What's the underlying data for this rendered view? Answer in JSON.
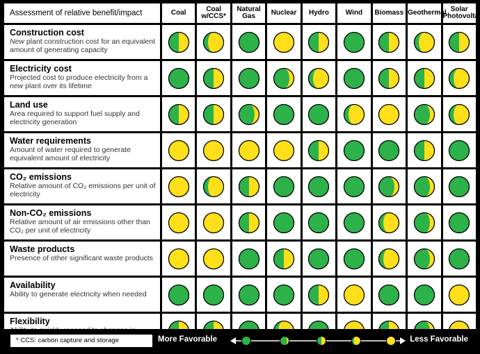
{
  "header": {
    "title": "Assessment of relative benefit/impact",
    "columns": [
      "Coal",
      "Coal w/CCS*",
      "Natural Gas",
      "Nuclear",
      "Hydro",
      "Wind",
      "Biomass",
      "Geothermal",
      "Solar Photovoltaic"
    ]
  },
  "rows": [
    {
      "title": "Construction cost",
      "desc_pre": "",
      "desc_em": "New",
      "desc_post": " plant construction cost for an equivalent amount of generating capacity",
      "ratings": [
        "half",
        "crescent",
        "green",
        "yellow",
        "half",
        "green",
        "half",
        "crescent",
        "half"
      ]
    },
    {
      "title": "Electricity cost",
      "desc_pre": "Projected cost to produce electricity from a ",
      "desc_em": "new",
      "desc_post": " plant over its lifetime",
      "ratings": [
        "green",
        "half",
        "green",
        "gibbous",
        "crescent",
        "green",
        "half",
        "half",
        "crescent"
      ]
    },
    {
      "title": "Land use",
      "desc_pre": "Area required to support fuel supply and electricity generation",
      "desc_em": "",
      "desc_post": "",
      "ratings": [
        "half",
        "half",
        "gibbous",
        "green",
        "green",
        "crescent",
        "yellow",
        "gibbous",
        "crescent"
      ]
    },
    {
      "title": "Water requirements",
      "desc_pre": "Amount of water required to generate equivalent amount of electricity",
      "desc_em": "",
      "desc_post": "",
      "ratings": [
        "yellow",
        "yellow",
        "yellow",
        "yellow",
        "half",
        "green",
        "green",
        "half",
        "green"
      ]
    },
    {
      "title": "CO₂ emissions",
      "desc_pre": "Relative amount of CO₂ emissions per unit of electricity",
      "desc_em": "",
      "desc_post": "",
      "ratings": [
        "yellow",
        "crescent",
        "half",
        "green",
        "green",
        "green",
        "gibbous",
        "gibbous",
        "green"
      ]
    },
    {
      "title": "Non-CO₂ emissions",
      "desc_pre": "Relative amount of air emissions other than CO₂ per unit of electricity",
      "desc_em": "",
      "desc_post": "",
      "ratings": [
        "yellow",
        "yellow",
        "half",
        "green",
        "green",
        "green",
        "crescent",
        "gibbous",
        "green"
      ]
    },
    {
      "title": "Waste products",
      "desc_pre": "Presence of other significant waste products",
      "desc_em": "",
      "desc_post": "",
      "ratings": [
        "yellow",
        "yellow",
        "green",
        "half",
        "green",
        "green",
        "crescent",
        "gibbous",
        "green"
      ]
    },
    {
      "title": "Availability",
      "desc_pre": "Ability to generate electricity when needed",
      "desc_em": "",
      "desc_post": "",
      "ratings": [
        "green",
        "green",
        "green",
        "green",
        "half",
        "yellow",
        "green",
        "green",
        "yellow"
      ]
    },
    {
      "title": "Flexibility",
      "desc_pre": "Ability to quickly respond to changes in demand",
      "desc_em": "",
      "desc_post": "",
      "ratings": [
        "half",
        "half",
        "green",
        "crescent",
        "green",
        "yellow",
        "half",
        "gibbous",
        "yellow"
      ]
    }
  ],
  "footer": {
    "note": "* CCS: carbon capture and storage",
    "more": "More Favorable",
    "less": "Less Favorable",
    "scale": [
      "green",
      "gibbous",
      "half",
      "crescent",
      "yellow"
    ]
  },
  "colors": {
    "green": "#2db24a",
    "yellow": "#ffde1a"
  }
}
